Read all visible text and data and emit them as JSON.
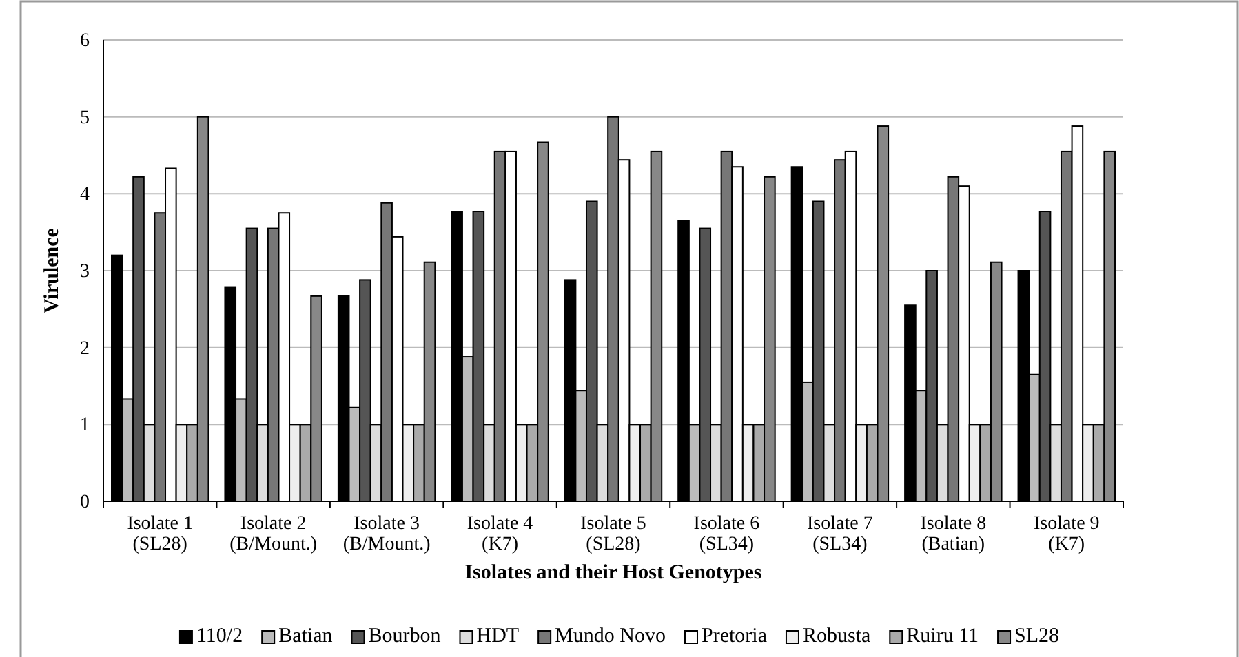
{
  "chart_data": {
    "type": "bar",
    "xlabel": "Isolates and their Host Genotypes",
    "ylabel": "Virulence",
    "categories": [
      "Isolate 1\n(SL28)",
      "Isolate 2\n(B/Mount.)",
      "Isolate 3\n(B/Mount.)",
      "Isolate 4\n(K7)",
      "Isolate 5\n(SL28)",
      "Isolate 6\n(SL34)",
      "Isolate 7\n(SL34)",
      "Isolate 8\n(Batian)",
      "Isolate 9\n(K7)"
    ],
    "series": [
      {
        "name": "110/2",
        "color": "#000000",
        "values": [
          3.2,
          2.78,
          2.67,
          3.77,
          2.88,
          3.65,
          4.35,
          2.55,
          3
        ]
      },
      {
        "name": "Batian",
        "color": "#bbbbbb",
        "values": [
          1.33,
          1.33,
          1.22,
          1.88,
          1.44,
          1,
          1.55,
          1.44,
          1.65
        ]
      },
      {
        "name": "Bourbon",
        "color": "#555555",
        "values": [
          4.22,
          3.55,
          2.88,
          3.77,
          3.9,
          3.55,
          3.9,
          3,
          3.77
        ]
      },
      {
        "name": "HDT",
        "color": "#dddddd",
        "values": [
          1,
          1,
          1,
          1,
          1,
          1,
          1,
          1,
          1
        ]
      },
      {
        "name": "Mundo Novo",
        "color": "#777777",
        "values": [
          3.75,
          3.55,
          3.88,
          4.55,
          5,
          4.55,
          4.44,
          4.22,
          4.55
        ]
      },
      {
        "name": "Pretoria",
        "color": "#ffffff",
        "values": [
          4.33,
          3.75,
          3.44,
          4.55,
          4.44,
          4.35,
          4.55,
          4.1,
          4.88
        ]
      },
      {
        "name": "Robusta",
        "color": "#eeeeee",
        "values": [
          1,
          1,
          1,
          1,
          1,
          1,
          1,
          1,
          1
        ]
      },
      {
        "name": "Ruiru 11",
        "color": "#aaaaaa",
        "values": [
          1,
          1,
          1,
          1,
          1,
          1,
          1,
          1,
          1
        ]
      },
      {
        "name": "SL28",
        "color": "#888888",
        "values": [
          5,
          2.67,
          3.11,
          4.67,
          4.55,
          4.22,
          4.88,
          3.11,
          4.55
        ]
      }
    ],
    "ylim": [
      0,
      6
    ],
    "yticks": [
      0,
      1,
      2,
      3,
      4,
      5,
      6
    ],
    "grid": "y",
    "legend": "bottom"
  }
}
